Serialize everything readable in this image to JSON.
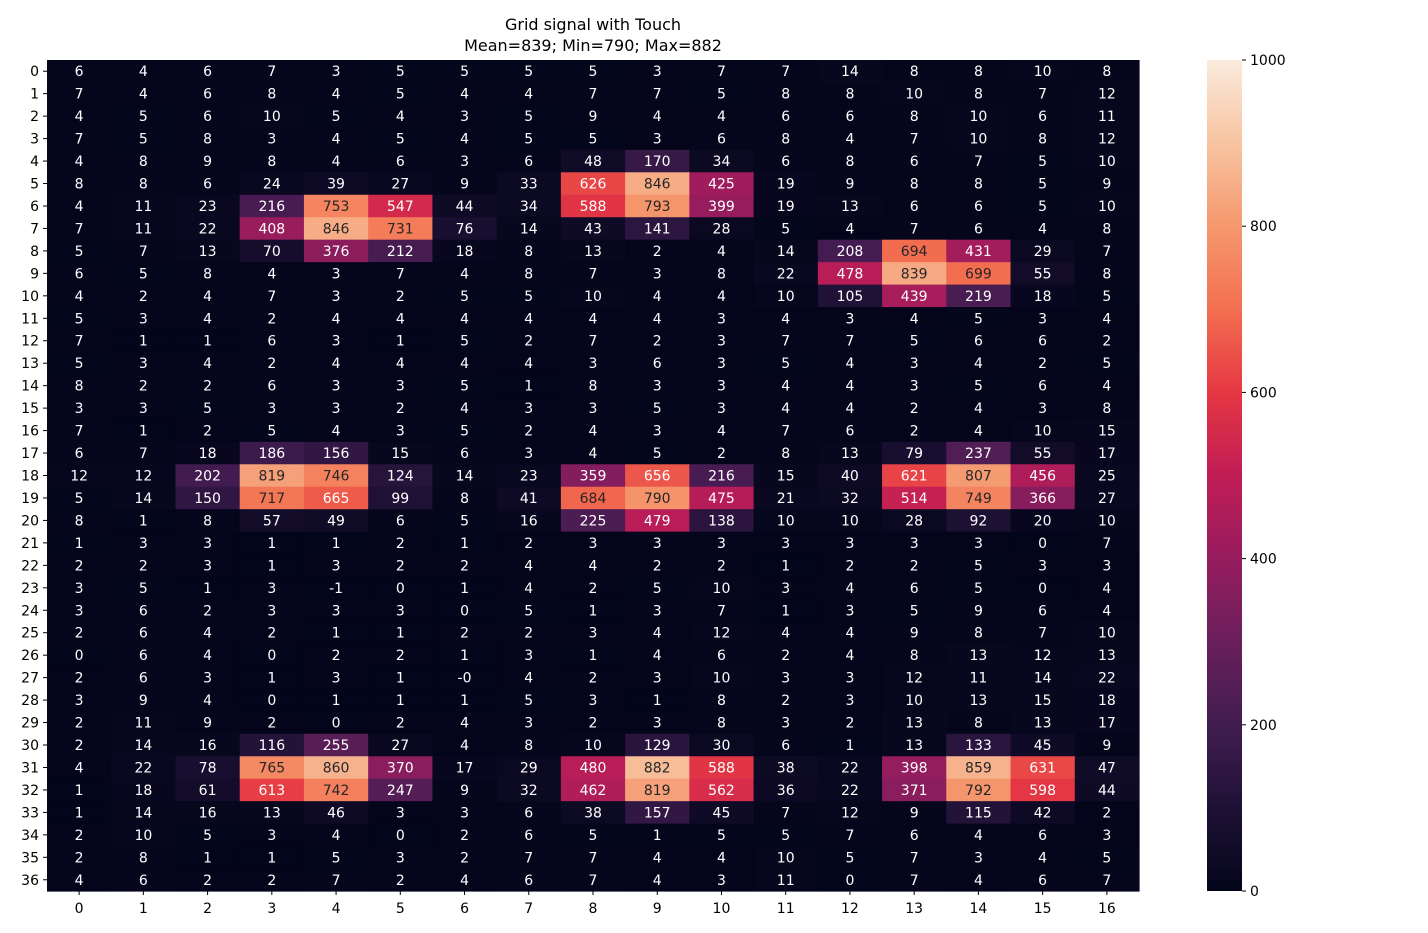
{
  "chart_data": {
    "type": "heatmap",
    "title": "Grid signal with Touch",
    "subtitle": "Mean=839; Min=790; Max=882",
    "xlabel": "",
    "ylabel": "",
    "x_categories": [
      "0",
      "1",
      "2",
      "3",
      "4",
      "5",
      "6",
      "7",
      "8",
      "9",
      "10",
      "11",
      "12",
      "13",
      "14",
      "15",
      "16"
    ],
    "y_categories": [
      "0",
      "1",
      "2",
      "3",
      "4",
      "5",
      "6",
      "7",
      "8",
      "9",
      "10",
      "11",
      "12",
      "13",
      "14",
      "15",
      "16",
      "17",
      "18",
      "19",
      "20",
      "21",
      "22",
      "23",
      "24",
      "25",
      "26",
      "27",
      "28",
      "29",
      "30",
      "31",
      "32",
      "33",
      "34",
      "35",
      "36"
    ],
    "colorbar": {
      "min": 0,
      "max": 1000,
      "ticks": [
        0,
        200,
        400,
        600,
        800,
        1000
      ],
      "colormap": "rocket"
    },
    "values": [
      [
        "6",
        "4",
        "6",
        "7",
        "3",
        "5",
        "5",
        "5",
        "5",
        "3",
        "7",
        "7",
        "14",
        "8",
        "8",
        "10",
        "8"
      ],
      [
        "7",
        "4",
        "6",
        "8",
        "4",
        "5",
        "4",
        "4",
        "7",
        "7",
        "5",
        "8",
        "8",
        "10",
        "8",
        "7",
        "12"
      ],
      [
        "4",
        "5",
        "6",
        "10",
        "5",
        "4",
        "3",
        "5",
        "9",
        "4",
        "4",
        "6",
        "6",
        "8",
        "10",
        "6",
        "11"
      ],
      [
        "7",
        "5",
        "8",
        "3",
        "4",
        "5",
        "4",
        "5",
        "5",
        "3",
        "6",
        "8",
        "4",
        "7",
        "10",
        "8",
        "12"
      ],
      [
        "4",
        "8",
        "9",
        "8",
        "4",
        "6",
        "3",
        "6",
        "48",
        "170",
        "34",
        "6",
        "8",
        "6",
        "7",
        "5",
        "10"
      ],
      [
        "8",
        "8",
        "6",
        "24",
        "39",
        "27",
        "9",
        "33",
        "626",
        "846",
        "425",
        "19",
        "9",
        "8",
        "8",
        "5",
        "9"
      ],
      [
        "4",
        "11",
        "23",
        "216",
        "753",
        "547",
        "44",
        "34",
        "588",
        "793",
        "399",
        "19",
        "13",
        "6",
        "6",
        "5",
        "10"
      ],
      [
        "7",
        "11",
        "22",
        "408",
        "846",
        "731",
        "76",
        "14",
        "43",
        "141",
        "28",
        "5",
        "4",
        "7",
        "6",
        "4",
        "8"
      ],
      [
        "5",
        "7",
        "13",
        "70",
        "376",
        "212",
        "18",
        "8",
        "13",
        "2",
        "4",
        "14",
        "208",
        "694",
        "431",
        "29",
        "7"
      ],
      [
        "6",
        "5",
        "8",
        "4",
        "3",
        "7",
        "4",
        "8",
        "7",
        "3",
        "8",
        "22",
        "478",
        "839",
        "699",
        "55",
        "8"
      ],
      [
        "4",
        "2",
        "4",
        "7",
        "3",
        "2",
        "5",
        "5",
        "10",
        "4",
        "4",
        "10",
        "105",
        "439",
        "219",
        "18",
        "5"
      ],
      [
        "5",
        "3",
        "4",
        "2",
        "4",
        "4",
        "4",
        "4",
        "4",
        "4",
        "3",
        "4",
        "3",
        "4",
        "5",
        "3",
        "4"
      ],
      [
        "7",
        "1",
        "1",
        "6",
        "3",
        "1",
        "5",
        "2",
        "7",
        "2",
        "3",
        "7",
        "7",
        "5",
        "6",
        "6",
        "2"
      ],
      [
        "5",
        "3",
        "4",
        "2",
        "4",
        "4",
        "4",
        "4",
        "3",
        "6",
        "3",
        "5",
        "4",
        "3",
        "4",
        "2",
        "5"
      ],
      [
        "8",
        "2",
        "2",
        "6",
        "3",
        "3",
        "5",
        "1",
        "8",
        "3",
        "3",
        "4",
        "4",
        "3",
        "5",
        "6",
        "4"
      ],
      [
        "3",
        "3",
        "5",
        "3",
        "3",
        "2",
        "4",
        "3",
        "3",
        "5",
        "3",
        "4",
        "4",
        "2",
        "4",
        "3",
        "8"
      ],
      [
        "7",
        "1",
        "2",
        "5",
        "4",
        "3",
        "5",
        "2",
        "4",
        "3",
        "4",
        "7",
        "6",
        "2",
        "4",
        "10",
        "15"
      ],
      [
        "6",
        "7",
        "18",
        "186",
        "156",
        "15",
        "6",
        "3",
        "4",
        "5",
        "2",
        "8",
        "13",
        "79",
        "237",
        "55",
        "17"
      ],
      [
        "12",
        "12",
        "202",
        "819",
        "746",
        "124",
        "14",
        "23",
        "359",
        "656",
        "216",
        "15",
        "40",
        "621",
        "807",
        "456",
        "25"
      ],
      [
        "5",
        "14",
        "150",
        "717",
        "665",
        "99",
        "8",
        "41",
        "684",
        "790",
        "475",
        "21",
        "32",
        "514",
        "749",
        "366",
        "27"
      ],
      [
        "8",
        "1",
        "8",
        "57",
        "49",
        "6",
        "5",
        "16",
        "225",
        "479",
        "138",
        "10",
        "10",
        "28",
        "92",
        "20",
        "10"
      ],
      [
        "1",
        "3",
        "3",
        "1",
        "1",
        "2",
        "1",
        "2",
        "3",
        "3",
        "3",
        "3",
        "3",
        "3",
        "3",
        "0",
        "7"
      ],
      [
        "2",
        "2",
        "3",
        "1",
        "3",
        "2",
        "2",
        "4",
        "4",
        "2",
        "2",
        "1",
        "2",
        "2",
        "5",
        "3",
        "3"
      ],
      [
        "3",
        "5",
        "1",
        "3",
        "-1",
        "0",
        "1",
        "4",
        "2",
        "5",
        "10",
        "3",
        "4",
        "6",
        "5",
        "0",
        "4"
      ],
      [
        "3",
        "6",
        "2",
        "3",
        "3",
        "3",
        "0",
        "5",
        "1",
        "3",
        "7",
        "1",
        "3",
        "5",
        "9",
        "6",
        "4"
      ],
      [
        "2",
        "6",
        "4",
        "2",
        "1",
        "1",
        "2",
        "2",
        "3",
        "4",
        "12",
        "4",
        "4",
        "9",
        "8",
        "7",
        "10"
      ],
      [
        "0",
        "6",
        "4",
        "0",
        "2",
        "2",
        "1",
        "3",
        "1",
        "4",
        "6",
        "2",
        "4",
        "8",
        "13",
        "12",
        "13"
      ],
      [
        "2",
        "6",
        "3",
        "1",
        "3",
        "1",
        "-0",
        "4",
        "2",
        "3",
        "10",
        "3",
        "3",
        "12",
        "11",
        "14",
        "22"
      ],
      [
        "3",
        "9",
        "4",
        "0",
        "1",
        "1",
        "1",
        "5",
        "3",
        "1",
        "8",
        "2",
        "3",
        "10",
        "13",
        "15",
        "18"
      ],
      [
        "2",
        "11",
        "9",
        "2",
        "0",
        "2",
        "4",
        "3",
        "2",
        "3",
        "8",
        "3",
        "2",
        "13",
        "8",
        "13",
        "17"
      ],
      [
        "2",
        "14",
        "16",
        "116",
        "255",
        "27",
        "4",
        "8",
        "10",
        "129",
        "30",
        "6",
        "1",
        "13",
        "133",
        "45",
        "9"
      ],
      [
        "4",
        "22",
        "78",
        "765",
        "860",
        "370",
        "17",
        "29",
        "480",
        "882",
        "588",
        "38",
        "22",
        "398",
        "859",
        "631",
        "47"
      ],
      [
        "1",
        "18",
        "61",
        "613",
        "742",
        "247",
        "9",
        "32",
        "462",
        "819",
        "562",
        "36",
        "22",
        "371",
        "792",
        "598",
        "44"
      ],
      [
        "1",
        "14",
        "16",
        "13",
        "46",
        "3",
        "3",
        "6",
        "38",
        "157",
        "45",
        "7",
        "12",
        "9",
        "115",
        "42",
        "2"
      ],
      [
        "2",
        "10",
        "5",
        "3",
        "4",
        "0",
        "2",
        "6",
        "5",
        "1",
        "5",
        "5",
        "7",
        "6",
        "4",
        "6",
        "3"
      ],
      [
        "2",
        "8",
        "1",
        "1",
        "5",
        "3",
        "2",
        "7",
        "7",
        "4",
        "4",
        "10",
        "5",
        "7",
        "3",
        "4",
        "5"
      ],
      [
        "4",
        "6",
        "2",
        "2",
        "7",
        "2",
        "4",
        "6",
        "7",
        "4",
        "3",
        "11",
        "0",
        "7",
        "4",
        "6",
        "7"
      ]
    ]
  }
}
